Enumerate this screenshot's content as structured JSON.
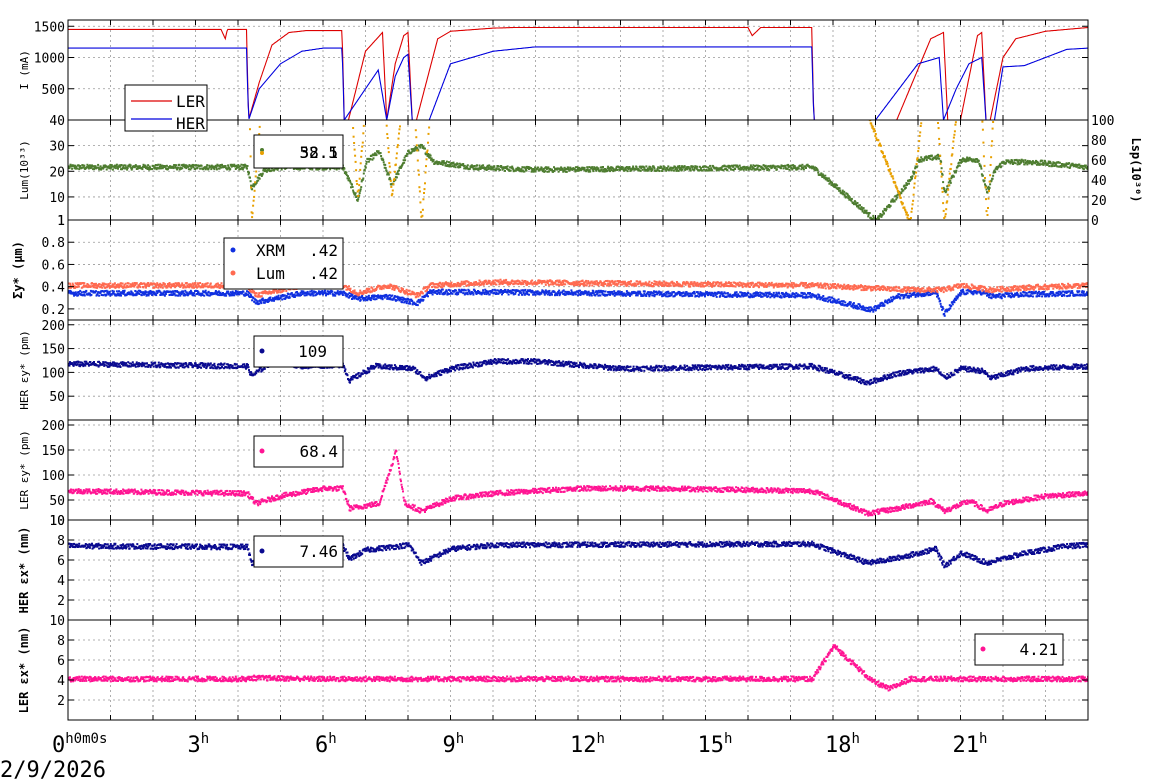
{
  "date": "2/9/2026",
  "colors": {
    "ler": "#dd0000",
    "her": "#0000dd",
    "lum": "#4e7d30",
    "lsp": "#e8a000",
    "xrm": "#1030e0",
    "lumsize": "#ff6a50",
    "herdark": "#0a0a90",
    "pink": "#ff1493"
  },
  "x_ticks": [
    {
      "h": 0,
      "main": "0",
      "suffix": "h0m0s"
    },
    {
      "h": 3,
      "main": "3",
      "suffix": "h"
    },
    {
      "h": 6,
      "main": "6",
      "suffix": "h"
    },
    {
      "h": 9,
      "main": "9",
      "suffix": "h"
    },
    {
      "h": 12,
      "main": "12",
      "suffix": "h"
    },
    {
      "h": 15,
      "main": "15",
      "suffix": "h"
    },
    {
      "h": 18,
      "main": "18",
      "suffix": "h"
    },
    {
      "h": 21,
      "main": "21",
      "suffix": "h"
    }
  ],
  "chart_data": [
    {
      "type": "line",
      "ylabel": "I (mA)",
      "ylim": [
        0,
        1600
      ],
      "yticks": [
        500,
        1000,
        1500
      ],
      "legend": [
        "LER",
        "HER"
      ],
      "series": [
        {
          "name": "LER",
          "color": "#dd0000",
          "x": [
            0,
            3.6,
            3.7,
            3.75,
            4.2,
            4.25,
            4.5,
            4.8,
            5.2,
            5.6,
            6.1,
            6.45,
            6.5,
            6.6,
            7.0,
            7.4,
            7.5,
            7.7,
            7.9,
            8.0,
            8.1,
            8.2,
            8.7,
            9.0,
            10.0,
            10.5,
            16.0,
            16.1,
            16.3,
            17.5,
            17.55,
            19.5,
            20.3,
            20.6,
            20.7,
            21.0,
            21.4,
            21.5,
            21.6,
            21.7,
            22.0,
            22.3,
            23.0,
            24.0
          ],
          "y": [
            1450,
            1450,
            1300,
            1450,
            1450,
            0,
            600,
            1200,
            1400,
            1430,
            1430,
            1430,
            0,
            0,
            1100,
            1400,
            0,
            900,
            1350,
            1400,
            0,
            0,
            1300,
            1420,
            1470,
            1480,
            1480,
            1350,
            1480,
            1480,
            0,
            0,
            1300,
            1400,
            0,
            0,
            1350,
            1400,
            0,
            0,
            1000,
            1300,
            1420,
            1480
          ]
        },
        {
          "name": "HER",
          "color": "#0000dd",
          "x": [
            0,
            3.6,
            4.2,
            4.25,
            4.5,
            5.0,
            5.5,
            6.0,
            6.45,
            6.5,
            6.9,
            7.3,
            7.5,
            7.7,
            7.9,
            8.0,
            8.1,
            8.5,
            9.0,
            10.0,
            11.0,
            17.5,
            17.55,
            19.0,
            19.5,
            20.0,
            20.5,
            20.6,
            20.9,
            21.2,
            21.5,
            21.6,
            21.8,
            22.0,
            22.5,
            23.0,
            23.5,
            24.0
          ],
          "y": [
            1150,
            1150,
            1150,
            0,
            500,
            900,
            1100,
            1150,
            1150,
            0,
            400,
            800,
            0,
            700,
            1000,
            1050,
            0,
            0,
            900,
            1100,
            1170,
            1170,
            0,
            0,
            450,
            900,
            1000,
            0,
            500,
            900,
            1000,
            0,
            0,
            850,
            870,
            1000,
            1130,
            1150
          ]
        }
      ]
    },
    {
      "type": "scatter",
      "ylabel": "Lum(10³³)",
      "y2label": "Lsp(10³⁰)",
      "ylim": [
        1,
        40
      ],
      "yticks": [
        1,
        10,
        20,
        30,
        40
      ],
      "y2lim": [
        0,
        100
      ],
      "y2ticks": [
        0,
        20,
        40,
        60,
        80,
        100
      ],
      "legend_values": [
        "32.1",
        "58.5"
      ],
      "series": [
        {
          "name": "Lum",
          "axis": "left",
          "color": "#4e7d30",
          "x": [
            0,
            3.7,
            4.2,
            4.3,
            4.6,
            5.0,
            6.0,
            6.45,
            6.8,
            7.0,
            7.3,
            7.6,
            7.9,
            8.0,
            8.3,
            8.6,
            9.5,
            11.0,
            17.5,
            19.0,
            19.8,
            20.0,
            20.5,
            20.6,
            21.0,
            21.4,
            21.6,
            21.8,
            22.0,
            22.6,
            24.0
          ],
          "y": [
            22,
            22,
            22,
            14,
            21,
            22,
            22,
            22,
            9,
            24,
            28,
            15,
            25,
            28,
            30,
            24,
            22,
            21,
            22,
            1,
            17,
            25,
            26,
            12,
            25,
            25,
            12,
            21,
            24,
            24,
            22
          ]
        },
        {
          "name": "Lsp",
          "axis": "right",
          "color": "#e8a000",
          "x": [
            0,
            3.7,
            4.2,
            4.3,
            4.6,
            5.0,
            6.0,
            6.45,
            6.8,
            7.0,
            7.3,
            7.6,
            7.9,
            8.0,
            8.3,
            8.6,
            9.0,
            10.0,
            17.5,
            19.8,
            20.3,
            20.6,
            21.0,
            21.4,
            21.6,
            21.8,
            22.2,
            22.6,
            23.5,
            24.0
          ],
          "y": [
            92,
            92,
            92,
            0,
            60,
            85,
            92,
            92,
            10,
            50,
            78,
            10,
            55,
            80,
            0,
            65,
            85,
            92,
            97,
            0,
            78,
            0,
            60,
            75,
            0,
            55,
            80,
            85,
            92,
            97
          ]
        }
      ]
    },
    {
      "type": "scatter",
      "ylabel": "Σy* (μm)",
      "ylim": [
        0.1,
        1.0
      ],
      "yticks": [
        0.2,
        0.4,
        0.6,
        0.8,
        1
      ],
      "legend": [
        "XRM",
        "Lum"
      ],
      "legend_values": [
        ".42",
        ".42"
      ],
      "series": [
        {
          "name": "XRM",
          "color": "#1030e0",
          "x": [
            0,
            4.2,
            4.4,
            5.5,
            6.45,
            6.8,
            7.5,
            8.2,
            8.5,
            10.0,
            17.5,
            18.9,
            19.5,
            20.4,
            20.6,
            21.0,
            21.5,
            21.7,
            22.5,
            24.0
          ],
          "y": [
            0.35,
            0.35,
            0.27,
            0.35,
            0.35,
            0.3,
            0.32,
            0.26,
            0.36,
            0.36,
            0.33,
            0.2,
            0.32,
            0.36,
            0.16,
            0.36,
            0.36,
            0.32,
            0.34,
            0.35
          ]
        },
        {
          "name": "Lum",
          "color": "#ff6a50",
          "x": [
            0,
            4.2,
            4.4,
            5.5,
            6.45,
            6.8,
            7.5,
            8.2,
            8.5,
            10.0,
            17.5,
            19.8,
            20.6,
            21.0,
            21.7,
            22.5,
            24.0
          ],
          "y": [
            0.42,
            0.42,
            0.33,
            0.42,
            0.42,
            0.35,
            0.42,
            0.33,
            0.42,
            0.45,
            0.42,
            0.38,
            0.38,
            0.42,
            0.38,
            0.4,
            0.42
          ]
        }
      ]
    },
    {
      "type": "scatter",
      "ylabel": "HER εy* (pm)",
      "ylim": [
        0,
        210
      ],
      "yticks": [
        50,
        100,
        150,
        200
      ],
      "legend_values": [
        "109"
      ],
      "series": [
        {
          "name": "HER",
          "color": "#0a0a90",
          "x": [
            0,
            4.2,
            4.3,
            4.8,
            5.5,
            6.45,
            6.6,
            7.2,
            8.1,
            8.4,
            9.0,
            10.0,
            11.0,
            13.0,
            17.5,
            18.8,
            19.5,
            20.4,
            20.6,
            21.0,
            21.5,
            21.7,
            22.5,
            24.0
          ],
          "y": [
            120,
            115,
            95,
            125,
            115,
            118,
            85,
            115,
            110,
            90,
            110,
            125,
            125,
            110,
            115,
            80,
            100,
            110,
            90,
            110,
            105,
            90,
            110,
            115
          ]
        }
      ]
    },
    {
      "type": "scatter",
      "ylabel": "LER εy* (pm)",
      "ylim": [
        10,
        210
      ],
      "yticks": [
        10,
        50,
        100,
        150,
        200
      ],
      "legend_values": [
        "68.4"
      ],
      "series": [
        {
          "name": "LER",
          "color": "#ff1493",
          "x": [
            0,
            4.2,
            4.4,
            5.0,
            6.0,
            6.45,
            6.6,
            7.3,
            7.7,
            7.9,
            8.3,
            9.0,
            10.0,
            12.0,
            14.0,
            17.5,
            18.8,
            19.5,
            20.3,
            20.6,
            21.2,
            21.6,
            22.0,
            23.0,
            24.0
          ],
          "y": [
            70,
            65,
            45,
            60,
            75,
            75,
            35,
            45,
            150,
            45,
            30,
            55,
            65,
            75,
            75,
            70,
            25,
            35,
            50,
            30,
            50,
            30,
            45,
            60,
            65
          ]
        }
      ]
    },
    {
      "type": "scatter",
      "ylabel": "HER εx* (nm)",
      "ylim": [
        0,
        10
      ],
      "yticks": [
        2,
        4,
        6,
        8,
        10
      ],
      "legend_values": [
        "7.46"
      ],
      "series": [
        {
          "name": "HER",
          "color": "#0a0a90",
          "x": [
            0,
            4.2,
            4.3,
            5.0,
            6.0,
            6.45,
            6.6,
            7.0,
            8.0,
            8.3,
            9.0,
            10.0,
            17.5,
            18.8,
            19.5,
            20.4,
            20.6,
            21.0,
            21.6,
            22.5,
            23.5,
            24.0
          ],
          "y": [
            7.5,
            7.4,
            5.8,
            6.8,
            7.5,
            7.5,
            6.2,
            7.1,
            7.6,
            5.8,
            7.2,
            7.6,
            7.7,
            5.8,
            6.3,
            7.2,
            5.5,
            6.8,
            5.8,
            6.8,
            7.5,
            7.6
          ]
        }
      ]
    },
    {
      "type": "scatter",
      "ylabel": "LER εx* (nm)",
      "ylim": [
        0,
        10
      ],
      "yticks": [
        2,
        4,
        6,
        8,
        10
      ],
      "legend_values": [
        "4.21"
      ],
      "series": [
        {
          "name": "LER",
          "color": "#ff1493",
          "x": [
            0,
            4.2,
            4.3,
            6.0,
            6.45,
            7.0,
            8.2,
            9.0,
            17.5,
            18.0,
            18.9,
            19.3,
            19.8,
            20.6,
            21.0,
            21.6,
            22.0,
            23.0,
            24.0
          ],
          "y": [
            4.2,
            4.2,
            4.3,
            4.2,
            4.2,
            4.2,
            4.2,
            4.2,
            4.2,
            7.5,
            4.0,
            3.2,
            4.2,
            4.2,
            4.2,
            4.2,
            4.2,
            4.2,
            4.2
          ]
        }
      ]
    }
  ]
}
